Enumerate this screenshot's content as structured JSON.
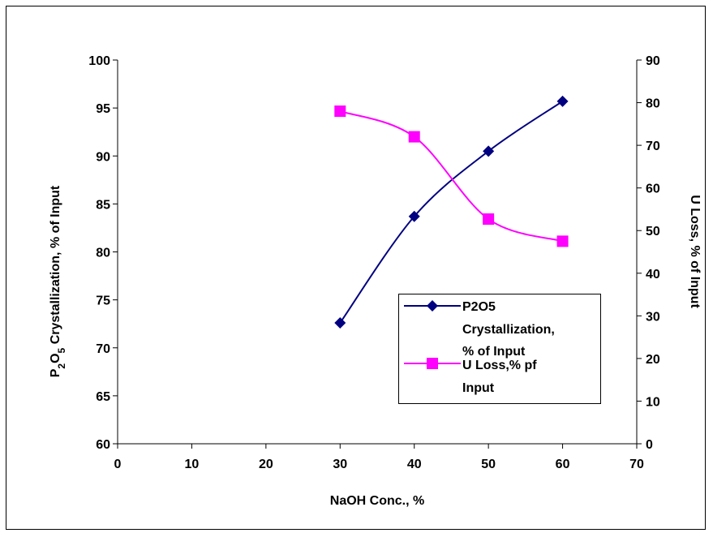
{
  "chart_data": {
    "type": "line",
    "xlabel": "NaOH Conc., %",
    "ylabel_left": [
      "P",
      "2",
      "O",
      "5",
      " Crystallization, % of Input"
    ],
    "ylabel_right": "U Loss, % of Input",
    "xlim": [
      0,
      70
    ],
    "ylim_left": [
      60,
      100
    ],
    "ylim_right": [
      0,
      90
    ],
    "x_ticks": [
      0,
      10,
      20,
      30,
      40,
      50,
      60,
      70
    ],
    "y_ticks_left": [
      60,
      65,
      70,
      75,
      80,
      85,
      90,
      95,
      100
    ],
    "y_ticks_right": [
      0,
      10,
      20,
      30,
      40,
      50,
      60,
      70,
      80,
      90
    ],
    "grid": false,
    "legend_position": "bottom-right-inside",
    "series": [
      {
        "name_lines": [
          "P2O5",
          "Crystallization,",
          "% of Input"
        ],
        "axis": "left",
        "color": "#000080",
        "marker": "diamond",
        "x": [
          30,
          40,
          50,
          60
        ],
        "values": [
          72.6,
          83.7,
          90.5,
          95.7
        ]
      },
      {
        "name_lines": [
          "U Loss,% pf",
          "Input"
        ],
        "axis": "right",
        "color": "#ff00ff",
        "marker": "square",
        "x": [
          30,
          40,
          50,
          60
        ],
        "values": [
          78,
          72,
          52.7,
          47.5
        ]
      }
    ]
  }
}
